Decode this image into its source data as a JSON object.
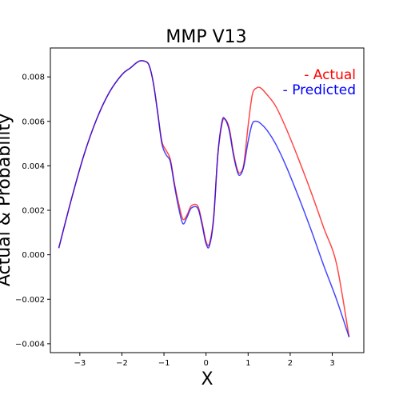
{
  "chart_data": {
    "type": "line",
    "title": "MMP V13",
    "xlabel": "X",
    "ylabel": "Actual & Probability",
    "xlim": [
      -3.7,
      3.75
    ],
    "ylim": [
      -0.0044,
      0.0093
    ],
    "xticks": [
      -3,
      -2,
      -1,
      0,
      1,
      2,
      3
    ],
    "xtick_labels": [
      "−3",
      "−2",
      "−1",
      "0",
      "1",
      "2",
      "3"
    ],
    "yticks": [
      -0.004,
      -0.002,
      0.0,
      0.002,
      0.004,
      0.006,
      0.008
    ],
    "ytick_labels": [
      "−0.004",
      "−0.002",
      "0.000",
      "0.002",
      "0.004",
      "0.006",
      "0.008"
    ],
    "grid": false,
    "legend": {
      "placement": "top-right",
      "entries": [
        "- Actual",
        "- Predicted"
      ]
    },
    "series": [
      {
        "name": "Actual",
        "color": "#ff0000",
        "points": [
          [
            -3.5,
            0.0003
          ],
          [
            -3.2,
            0.0025
          ],
          [
            -2.9,
            0.0045
          ],
          [
            -2.6,
            0.0061
          ],
          [
            -2.3,
            0.0073
          ],
          [
            -2.0,
            0.0081
          ],
          [
            -1.8,
            0.0084
          ],
          [
            -1.6,
            0.0087
          ],
          [
            -1.45,
            0.0087
          ],
          [
            -1.35,
            0.0085
          ],
          [
            -1.25,
            0.0077
          ],
          [
            -1.15,
            0.0064
          ],
          [
            -1.05,
            0.0051
          ],
          [
            -0.95,
            0.0047
          ],
          [
            -0.85,
            0.0043
          ],
          [
            -0.75,
            0.0032
          ],
          [
            -0.65,
            0.0023
          ],
          [
            -0.55,
            0.0016
          ],
          [
            -0.45,
            0.0018
          ],
          [
            -0.35,
            0.0022
          ],
          [
            -0.2,
            0.0022
          ],
          [
            -0.1,
            0.0015
          ],
          [
            0.0,
            0.0006
          ],
          [
            0.08,
            0.0005
          ],
          [
            0.18,
            0.0017
          ],
          [
            0.28,
            0.0045
          ],
          [
            0.38,
            0.0059
          ],
          [
            0.45,
            0.0061
          ],
          [
            0.55,
            0.0057
          ],
          [
            0.65,
            0.0046
          ],
          [
            0.75,
            0.0038
          ],
          [
            0.82,
            0.0037
          ],
          [
            0.9,
            0.0041
          ],
          [
            1.0,
            0.0058
          ],
          [
            1.1,
            0.0072
          ],
          [
            1.2,
            0.0075
          ],
          [
            1.3,
            0.0075
          ],
          [
            1.45,
            0.0072
          ],
          [
            1.65,
            0.0067
          ],
          [
            1.9,
            0.0057
          ],
          [
            2.2,
            0.0043
          ],
          [
            2.5,
            0.0028
          ],
          [
            2.8,
            0.0012
          ],
          [
            3.1,
            -0.0004
          ],
          [
            3.4,
            -0.0037
          ]
        ]
      },
      {
        "name": "Predicted",
        "color": "#0000ff",
        "points": [
          [
            -3.5,
            0.0003
          ],
          [
            -3.2,
            0.0025
          ],
          [
            -2.9,
            0.0045
          ],
          [
            -2.6,
            0.0061
          ],
          [
            -2.3,
            0.0073
          ],
          [
            -2.0,
            0.0081
          ],
          [
            -1.8,
            0.0084
          ],
          [
            -1.6,
            0.0087
          ],
          [
            -1.45,
            0.0087
          ],
          [
            -1.35,
            0.0085
          ],
          [
            -1.25,
            0.0077
          ],
          [
            -1.15,
            0.0064
          ],
          [
            -1.05,
            0.005
          ],
          [
            -0.95,
            0.0045
          ],
          [
            -0.85,
            0.0042
          ],
          [
            -0.75,
            0.0031
          ],
          [
            -0.65,
            0.0021
          ],
          [
            -0.55,
            0.0014
          ],
          [
            -0.45,
            0.0017
          ],
          [
            -0.35,
            0.0021
          ],
          [
            -0.2,
            0.0021
          ],
          [
            -0.1,
            0.0014
          ],
          [
            0.0,
            0.0005
          ],
          [
            0.08,
            0.0004
          ],
          [
            0.18,
            0.0016
          ],
          [
            0.28,
            0.0045
          ],
          [
            0.38,
            0.006
          ],
          [
            0.45,
            0.0061
          ],
          [
            0.55,
            0.0056
          ],
          [
            0.65,
            0.0045
          ],
          [
            0.75,
            0.0037
          ],
          [
            0.82,
            0.0036
          ],
          [
            0.9,
            0.004
          ],
          [
            1.0,
            0.0051
          ],
          [
            1.1,
            0.0059
          ],
          [
            1.2,
            0.006
          ],
          [
            1.3,
            0.0059
          ],
          [
            1.45,
            0.0056
          ],
          [
            1.65,
            0.005
          ],
          [
            1.9,
            0.004
          ],
          [
            2.2,
            0.0026
          ],
          [
            2.5,
            0.0011
          ],
          [
            2.8,
            -0.0005
          ],
          [
            3.1,
            -0.002
          ],
          [
            3.4,
            -0.0037
          ]
        ]
      }
    ]
  }
}
